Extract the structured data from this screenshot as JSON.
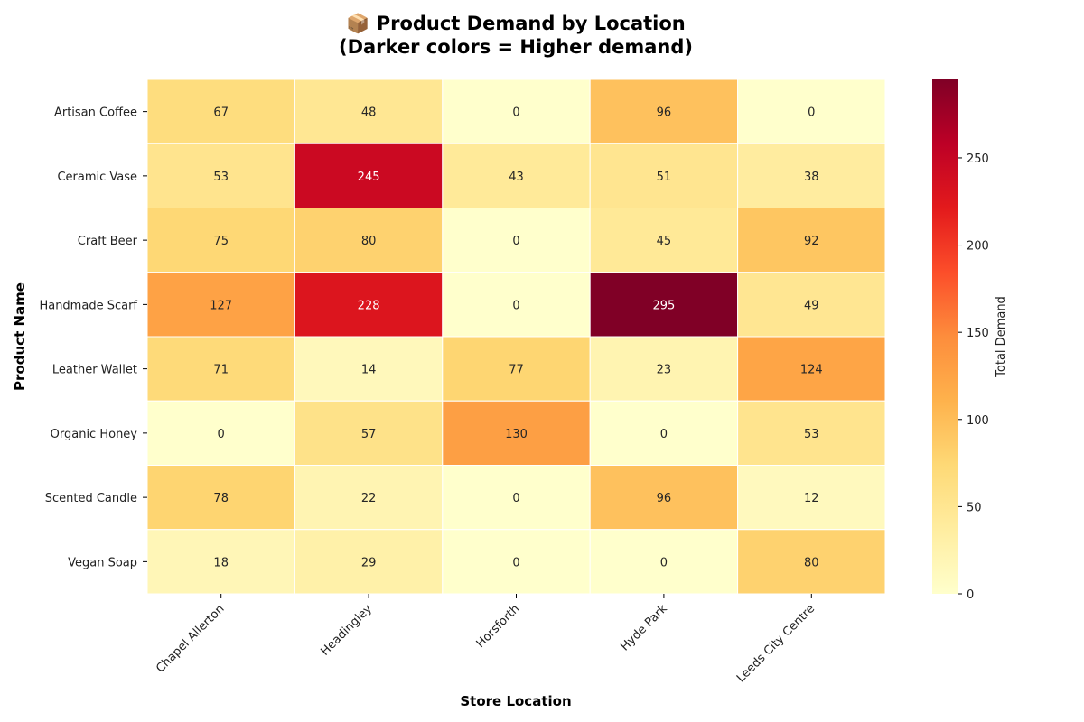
{
  "chart_data": {
    "type": "heatmap",
    "title_line1": "📦 Product Demand by Location",
    "title_line2": "(Darker colors = Higher demand)",
    "xlabel": "Store Location",
    "ylabel": "Product Name",
    "colorbar_label": "Total Demand",
    "colormap": "YlOrRd",
    "vmin": 0,
    "vmax": 295,
    "colorbar_ticks": [
      0,
      50,
      100,
      150,
      200,
      250
    ],
    "x_categories": [
      "Chapel Allerton",
      "Headingley",
      "Horsforth",
      "Hyde Park",
      "Leeds City Centre"
    ],
    "y_categories": [
      "Artisan Coffee",
      "Ceramic Vase",
      "Craft Beer",
      "Handmade Scarf",
      "Leather Wallet",
      "Organic Honey",
      "Scented Candle",
      "Vegan Soap"
    ],
    "values": [
      [
        67,
        48,
        0,
        96,
        0
      ],
      [
        53,
        245,
        43,
        51,
        38
      ],
      [
        75,
        80,
        0,
        45,
        92
      ],
      [
        127,
        228,
        0,
        295,
        49
      ],
      [
        71,
        14,
        77,
        23,
        124
      ],
      [
        0,
        57,
        130,
        0,
        53
      ],
      [
        78,
        22,
        0,
        96,
        12
      ],
      [
        18,
        29,
        0,
        0,
        80
      ]
    ],
    "annotations": true,
    "grid": false
  }
}
